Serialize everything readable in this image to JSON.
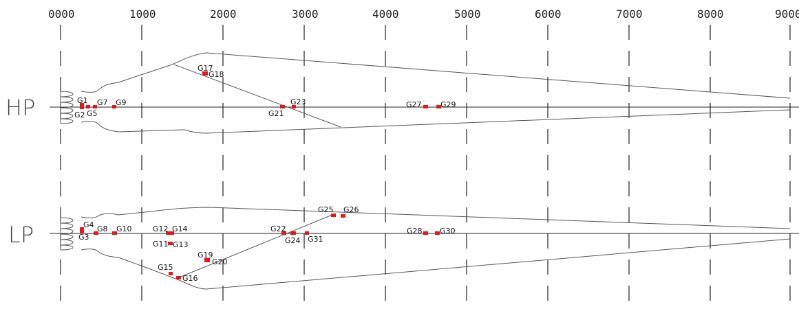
{
  "axis": {
    "ticks": [
      "0000",
      "1000",
      "2000",
      "3000",
      "4000",
      "5000",
      "6000",
      "7000",
      "8000",
      "9000"
    ]
  },
  "rows": {
    "hp": {
      "label": "HP"
    },
    "lp": {
      "label": "LP"
    }
  },
  "gauges": {
    "hp": [
      {
        "label": "G1"
      },
      {
        "label": "G2"
      },
      {
        "label": "G5"
      },
      {
        "label": "G7"
      },
      {
        "label": "G9"
      },
      {
        "label": "G17"
      },
      {
        "label": "G18"
      },
      {
        "label": "G21"
      },
      {
        "label": "G23"
      },
      {
        "label": "G27"
      },
      {
        "label": "G29"
      }
    ],
    "lp": [
      {
        "label": "G4"
      },
      {
        "label": "G3"
      },
      {
        "label": "G8"
      },
      {
        "label": "G10"
      },
      {
        "label": "G12"
      },
      {
        "label": "G14"
      },
      {
        "label": "G11"
      },
      {
        "label": "G13"
      },
      {
        "label": "G19"
      },
      {
        "label": "G20"
      },
      {
        "label": "G15"
      },
      {
        "label": "G16"
      },
      {
        "label": "G22"
      },
      {
        "label": "G24"
      },
      {
        "label": "G31"
      },
      {
        "label": "G25"
      },
      {
        "label": "G26"
      },
      {
        "label": "G28"
      },
      {
        "label": "G30"
      }
    ]
  },
  "colors": {
    "marker": "#e8141e",
    "line": "#555555",
    "text": "#111111"
  }
}
